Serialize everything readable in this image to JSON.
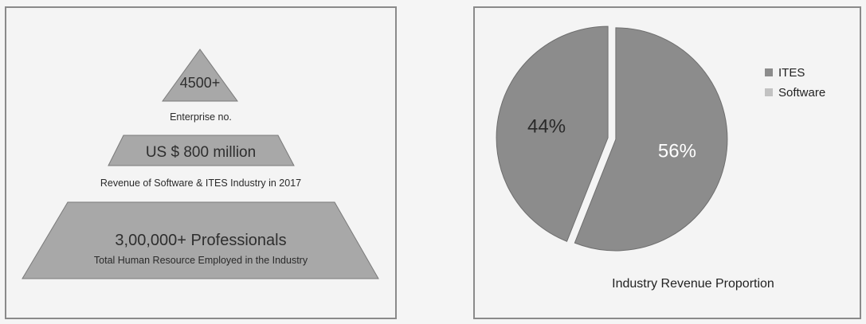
{
  "colors": {
    "panel_border": "#8a8a8a",
    "panel_bg": "#f4f4f4",
    "trapezoid_fill": "#a8a8a8",
    "trapezoid_stroke": "#7a7a7a",
    "ites_color": "#8c8c8c",
    "software_color": "#c2c2c2",
    "pie_edge": "#6e6e6e"
  },
  "pyramid": {
    "tiers": [
      {
        "value": "4500+",
        "caption": "Enterprise no."
      },
      {
        "value": "US $ 800 million",
        "caption": "Revenue of Software & ITES Industry in 2017"
      },
      {
        "value": "3,00,000+ Professionals",
        "caption": "Total Human Resource Employed in the Industry"
      }
    ]
  },
  "chart_data": {
    "type": "pie",
    "title": "Industry Revenue Proportion",
    "legend_position": "top-right",
    "slices": [
      {
        "name": "ITES",
        "value": 56,
        "label": "56%",
        "icon": "square-icon"
      },
      {
        "name": "Software",
        "value": 44,
        "label": "44%",
        "icon": "square-icon"
      }
    ]
  }
}
